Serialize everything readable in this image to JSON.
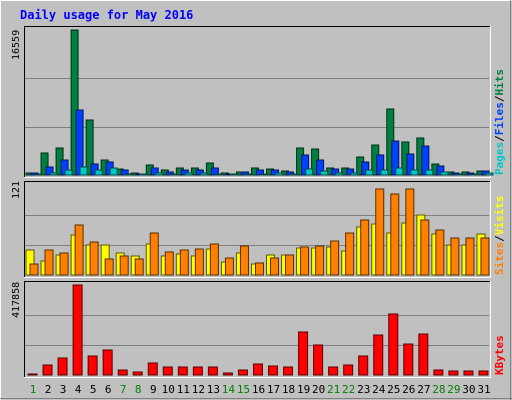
{
  "title": "Daily usage for May 2016",
  "colors": {
    "background": "#c0c0c0",
    "title": "#0000ff",
    "pages": "#00c8c8",
    "files": "#0040ff",
    "hits": "#008040",
    "visits": "#ffff00",
    "sites": "#ff8000",
    "kbytes": "#ff0000",
    "day_weekday": "#000000",
    "day_weekend": "#008000"
  },
  "chart_data": [
    {
      "type": "bar",
      "name": "hits-files-pages",
      "ymax_label": "16559",
      "ylim": [
        0,
        16559
      ],
      "legend": {
        "pages": "Pages",
        "files": "Files",
        "hits": "Hits",
        "sep": "/"
      },
      "grid": true,
      "categories": [
        "1",
        "2",
        "3",
        "4",
        "5",
        "6",
        "7",
        "8",
        "9",
        "10",
        "11",
        "12",
        "13",
        "14",
        "15",
        "16",
        "17",
        "18",
        "19",
        "20",
        "21",
        "22",
        "23",
        "24",
        "25",
        "26",
        "27",
        "28",
        "29",
        "30",
        "31"
      ],
      "series": [
        {
          "name": "Hits",
          "key": "hits",
          "values": [
            250,
            2560,
            3140,
            16559,
            6290,
            1680,
            650,
            190,
            1100,
            520,
            840,
            840,
            1410,
            190,
            350,
            750,
            650,
            440,
            3140,
            2980,
            840,
            840,
            2060,
            3460,
            7540,
            3770,
            4210,
            1260,
            330,
            330,
            480
          ]
        },
        {
          "name": "Files",
          "key": "files",
          "values": [
            190,
            860,
            1730,
            7420,
            1260,
            1450,
            580,
            170,
            780,
            380,
            600,
            600,
            780,
            150,
            300,
            560,
            560,
            330,
            2250,
            1700,
            640,
            640,
            1510,
            2280,
            3850,
            2420,
            3300,
            1040,
            280,
            280,
            420
          ]
        },
        {
          "name": "Pages",
          "key": "pages",
          "values": [
            110,
            280,
            620,
            920,
            600,
            850,
            170,
            90,
            230,
            170,
            220,
            220,
            170,
            110,
            150,
            170,
            230,
            170,
            730,
            440,
            230,
            230,
            600,
            600,
            780,
            620,
            520,
            350,
            150,
            150,
            240
          ]
        }
      ]
    },
    {
      "type": "bar",
      "name": "visits-sites",
      "ymax_label": "121",
      "ylim": [
        0,
        121
      ],
      "legend": {
        "sites": "Sites",
        "visits": "Visits",
        "sep": "/"
      },
      "grid": true,
      "categories": [
        "1",
        "2",
        "3",
        "4",
        "5",
        "6",
        "7",
        "8",
        "9",
        "10",
        "11",
        "12",
        "13",
        "14",
        "15",
        "16",
        "17",
        "18",
        "19",
        "20",
        "21",
        "22",
        "23",
        "24",
        "25",
        "26",
        "27",
        "28",
        "29",
        "30",
        "31"
      ],
      "series": [
        {
          "name": "Visits",
          "key": "visits",
          "values": [
            33,
            19,
            27,
            54,
            40,
            41,
            30,
            25,
            42,
            25,
            28,
            26,
            35,
            17,
            30,
            15,
            27,
            27,
            36,
            36,
            37,
            32,
            65,
            69,
            56,
            70,
            80,
            55,
            40,
            40,
            55
          ]
        },
        {
          "name": "Sites",
          "key": "sites",
          "values": [
            15,
            33,
            29,
            67,
            45,
            21,
            25,
            21,
            56,
            31,
            34,
            35,
            42,
            23,
            39,
            16,
            23,
            27,
            37,
            39,
            46,
            57,
            74,
            115,
            109,
            116,
            74,
            61,
            50,
            50,
            50
          ]
        }
      ]
    },
    {
      "type": "bar",
      "name": "kbytes",
      "ymax_label": "417858",
      "ylim": [
        0,
        417858
      ],
      "legend": {
        "kbytes": "KBytes"
      },
      "grid": true,
      "categories": [
        "1",
        "2",
        "3",
        "4",
        "5",
        "6",
        "7",
        "8",
        "9",
        "10",
        "11",
        "12",
        "13",
        "14",
        "15",
        "16",
        "17",
        "18",
        "19",
        "20",
        "21",
        "22",
        "23",
        "24",
        "25",
        "26",
        "27",
        "28",
        "29",
        "30",
        "31"
      ],
      "series": [
        {
          "name": "KBytes",
          "key": "kbytes",
          "values": [
            4500,
            46000,
            77000,
            417858,
            88000,
            115000,
            22000,
            13500,
            54000,
            36000,
            36000,
            36000,
            36000,
            9000,
            22000,
            49000,
            41000,
            36000,
            198000,
            141000,
            36000,
            45000,
            90000,
            185000,
            284000,
            144000,
            190000,
            22000,
            18000,
            18000,
            18000
          ]
        }
      ]
    }
  ],
  "weekend_days": [
    "1",
    "7",
    "8",
    "14",
    "15",
    "21",
    "22",
    "28",
    "29"
  ]
}
